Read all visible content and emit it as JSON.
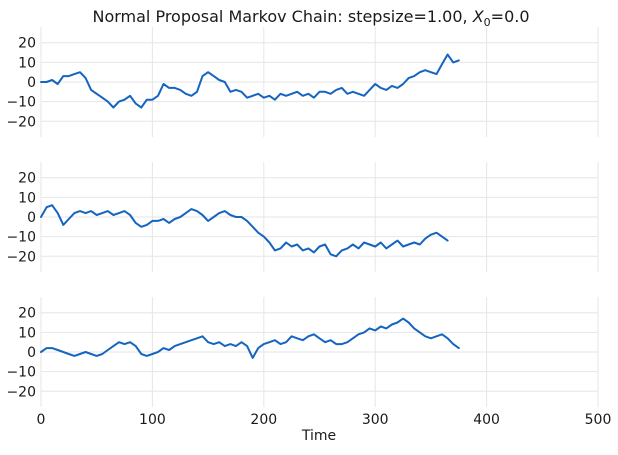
{
  "chart_data": {
    "type": "line",
    "title_prefix": "Normal Proposal Markov Chain: stepsize=1.00, ",
    "title_var": "X",
    "title_sub": "0",
    "title_suffix": "=0.0",
    "xlabel": "Time",
    "xlim": [
      0,
      500
    ],
    "ylim": [
      -28,
      28
    ],
    "xticks": [
      "0",
      "100",
      "200",
      "300",
      "400",
      "500"
    ],
    "yticks": [
      "20",
      "10",
      "0",
      "−10",
      "−20"
    ],
    "grid": true,
    "line_color": "#1565c0",
    "series": [
      {
        "step": 5,
        "values": [
          0,
          0,
          1,
          -1,
          3,
          3,
          4,
          5,
          2,
          -4,
          -6,
          -8,
          -10,
          -13,
          -10,
          -9,
          -7,
          -11,
          -13,
          -9,
          -9,
          -7,
          -1,
          -3,
          -3,
          -4,
          -6,
          -7,
          -5,
          3,
          5,
          3,
          1,
          0,
          -5,
          -4,
          -5,
          -8,
          -7,
          -6,
          -8,
          -7,
          -9,
          -6,
          -7,
          -6,
          -5,
          -7,
          -6,
          -8,
          -5,
          -5,
          -6,
          -4,
          -3,
          -6,
          -5,
          -6,
          -7,
          -4,
          -1,
          -3,
          -4,
          -2,
          -3,
          -1,
          2,
          3,
          5,
          6,
          5,
          4,
          9,
          14,
          10,
          11
        ]
      },
      {
        "step": 5,
        "values": [
          0,
          5,
          6,
          2,
          -4,
          -1,
          2,
          3,
          2,
          3,
          1,
          2,
          3,
          1,
          2,
          3,
          1,
          -3,
          -5,
          -4,
          -2,
          -2,
          -1,
          -3,
          -1,
          0,
          2,
          4,
          3,
          1,
          -2,
          0,
          2,
          3,
          1,
          0,
          0,
          -2,
          -5,
          -8,
          -10,
          -13,
          -17,
          -16,
          -13,
          -15,
          -14,
          -17,
          -16,
          -18,
          -15,
          -14,
          -19,
          -20,
          -17,
          -16,
          -14,
          -16,
          -13,
          -14,
          -15,
          -13,
          -16,
          -14,
          -12,
          -15,
          -14,
          -13,
          -14,
          -11,
          -9,
          -8,
          -10,
          -12
        ]
      },
      {
        "step": 5,
        "values": [
          0,
          2,
          2,
          1,
          0,
          -1,
          -2,
          -1,
          0,
          -1,
          -2,
          -1,
          1,
          3,
          5,
          4,
          5,
          3,
          -1,
          -2,
          -1,
          0,
          2,
          1,
          3,
          4,
          5,
          6,
          7,
          8,
          5,
          4,
          5,
          3,
          4,
          3,
          5,
          3,
          -3,
          2,
          4,
          5,
          6,
          4,
          5,
          8,
          7,
          6,
          8,
          9,
          7,
          5,
          6,
          4,
          4,
          5,
          7,
          9,
          10,
          12,
          11,
          13,
          12,
          14,
          15,
          17,
          15,
          12,
          10,
          8,
          7,
          8,
          9,
          7,
          4,
          2
        ]
      }
    ]
  }
}
